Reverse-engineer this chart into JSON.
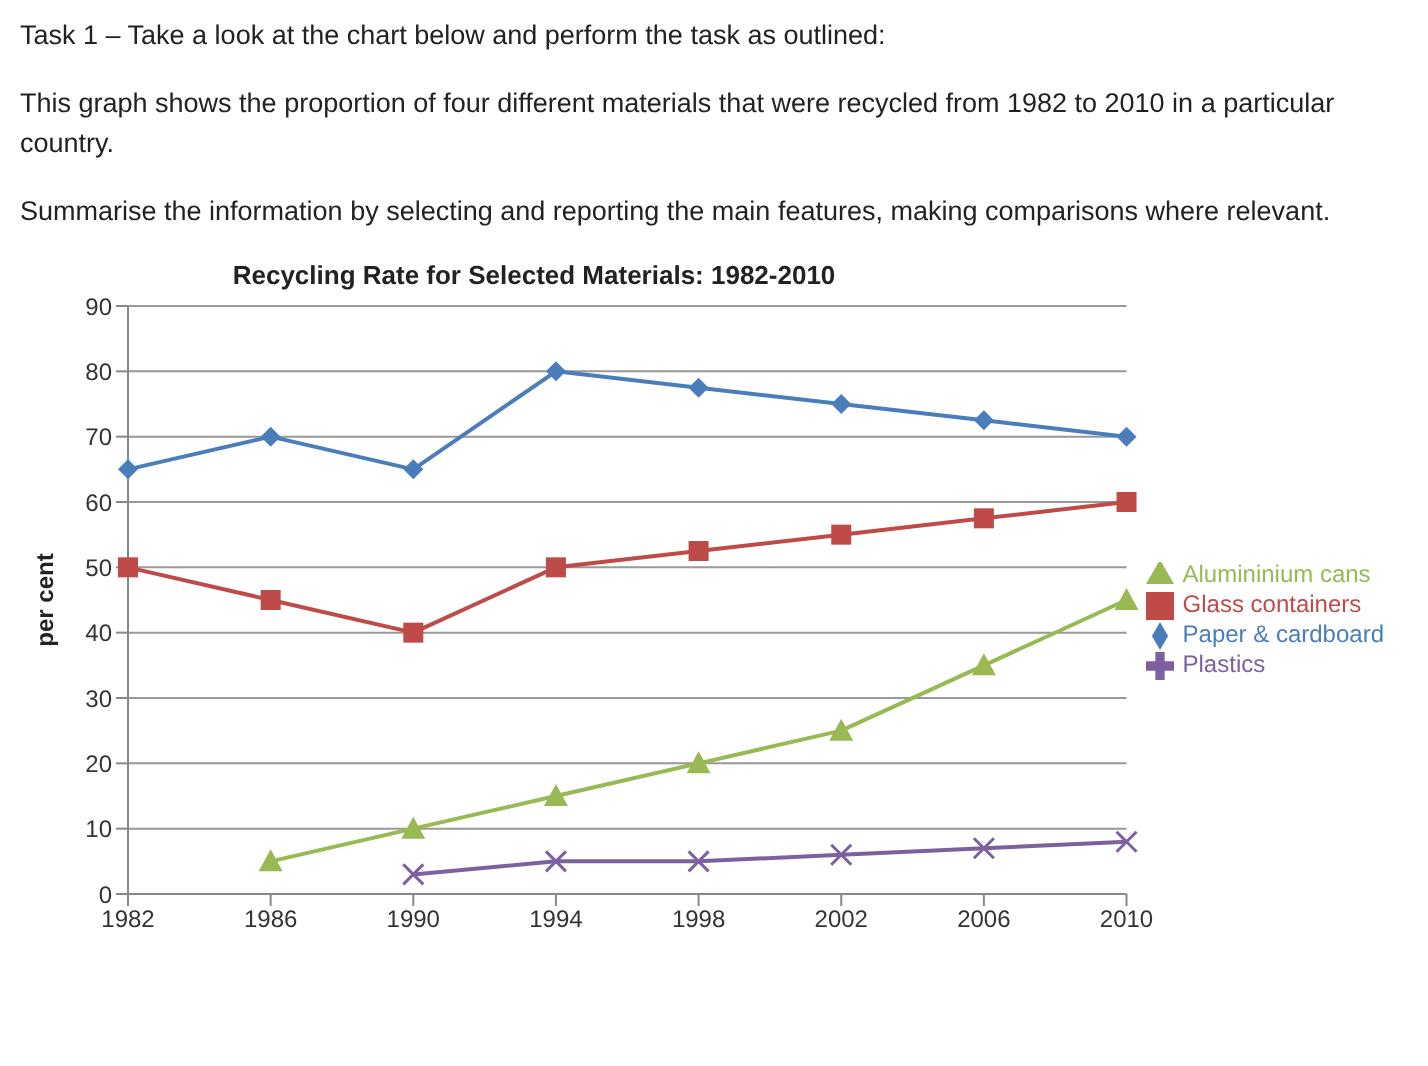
{
  "chart_data": {
    "type": "line",
    "title": "Recycling Rate for Selected Materials: 1982-2010",
    "annotations": [
      "Task 1 – Take a look at the chart below and perform the task as outlined:",
      "This graph shows the proportion of four different materials that were recycled from 1982 to 2010 in a particular country.",
      "Summarise the information by selecting and reporting the main features, making comparisons where relevant."
    ],
    "ylabel": "per cent",
    "categories": [
      "1982",
      "1986",
      "1990",
      "1994",
      "1998",
      "2002",
      "2006",
      "2010"
    ],
    "series": [
      {
        "name": "Paper & cardboard",
        "color": "#4a7ebb",
        "marker": "diamond",
        "values": [
          65,
          70,
          65,
          80,
          77.5,
          75,
          72.5,
          70
        ]
      },
      {
        "name": "Glass containers",
        "color": "#be4b48",
        "marker": "square",
        "values": [
          50,
          45,
          40,
          50,
          52.5,
          55,
          57.5,
          60
        ]
      },
      {
        "name": "Alumininium cans",
        "color": "#98b954",
        "marker": "triangle",
        "values": [
          null,
          5,
          10,
          15,
          20,
          25,
          35,
          45
        ]
      },
      {
        "name": "Plastics",
        "color": "#7d60a0",
        "marker": "cross",
        "values": [
          null,
          null,
          3,
          5,
          5,
          6,
          7,
          8
        ]
      }
    ],
    "ylim": [
      0,
      90
    ],
    "yticks": [
      0,
      10,
      20,
      30,
      40,
      50,
      60,
      70,
      80,
      90
    ],
    "grid": "y",
    "legend": "right"
  }
}
